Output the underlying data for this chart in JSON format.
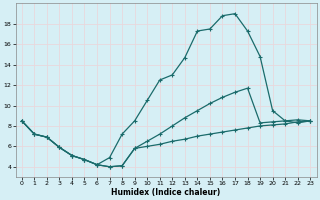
{
  "xlabel": "Humidex (Indice chaleur)",
  "background_color": "#d6eff5",
  "grid_color": "#c8e8ef",
  "line_color": "#1a6b6b",
  "xlim": [
    -0.5,
    23.5
  ],
  "ylim": [
    3.0,
    20.0
  ],
  "yticks": [
    4,
    6,
    8,
    10,
    12,
    14,
    16,
    18
  ],
  "xticks": [
    0,
    1,
    2,
    3,
    4,
    5,
    6,
    7,
    8,
    9,
    10,
    11,
    12,
    13,
    14,
    15,
    16,
    17,
    18,
    19,
    20,
    21,
    22,
    23
  ],
  "curve1_x": [
    0,
    1,
    2,
    3,
    4,
    5,
    6,
    7,
    8,
    9,
    10,
    11,
    12,
    13,
    14,
    15,
    16,
    17,
    18,
    19,
    20,
    21,
    22,
    23
  ],
  "curve1_y": [
    8.5,
    7.2,
    6.9,
    5.9,
    5.1,
    4.7,
    4.2,
    4.0,
    4.1,
    5.8,
    6.0,
    6.2,
    6.5,
    6.7,
    7.0,
    7.2,
    7.4,
    7.6,
    7.8,
    8.0,
    8.1,
    8.2,
    8.4,
    8.5
  ],
  "curve2_x": [
    0,
    1,
    2,
    3,
    4,
    5,
    6,
    7,
    8,
    9,
    10,
    11,
    12,
    13,
    14,
    15,
    16,
    17,
    18,
    19,
    20,
    21,
    22,
    23
  ],
  "curve2_y": [
    8.5,
    7.2,
    6.9,
    5.9,
    5.1,
    4.7,
    4.2,
    4.9,
    7.2,
    8.5,
    10.5,
    12.5,
    13.0,
    14.7,
    17.3,
    17.5,
    18.8,
    19.0,
    17.3,
    14.8,
    9.5,
    8.5,
    8.3,
    8.5
  ],
  "curve3_x": [
    0,
    1,
    2,
    3,
    4,
    5,
    6,
    7,
    8,
    9,
    10,
    11,
    12,
    13,
    14,
    15,
    16,
    17,
    18,
    19,
    20,
    21,
    22,
    23
  ],
  "curve3_y": [
    8.5,
    7.2,
    6.9,
    5.9,
    5.1,
    4.7,
    4.2,
    4.0,
    4.1,
    5.8,
    6.5,
    7.2,
    8.0,
    8.8,
    9.5,
    10.2,
    10.8,
    11.3,
    11.7,
    8.3,
    8.4,
    8.5,
    8.6,
    8.5
  ]
}
